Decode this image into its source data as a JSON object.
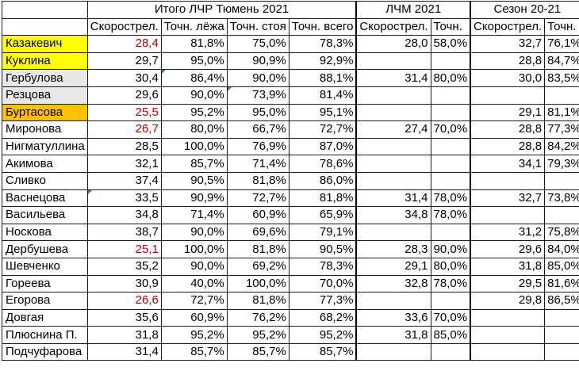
{
  "colors": {
    "highlight_yellow": "#ffff00",
    "highlight_orange": "#ffc000",
    "highlight_grey": "#e8e8e8",
    "slow_red": "#c00000",
    "comment_marker_green": "#3a8c3a"
  },
  "header": {
    "group1": "Итого ЛЧР Тюмень 2021",
    "group2": "ЛЧМ 2021",
    "group3": "Сезон 20-21",
    "cols": [
      "",
      "Скорострел.",
      "Точн. лёжа",
      "Точн. стоя",
      "Точн. всего",
      "Скорострел.",
      "Точн.",
      "Скорострел.",
      "Точн."
    ]
  },
  "rows": [
    {
      "name": "Казакевич",
      "highlight": "yellow",
      "red": true,
      "c": [
        "28,4",
        "81,8%",
        "75,0%",
        "78,3%",
        "28,0",
        "58,0%",
        "32,7",
        "76,1%"
      ]
    },
    {
      "name": "Куклина",
      "highlight": "yellow",
      "red": false,
      "c": [
        "29,7",
        "95,0%",
        "90,9%",
        "92,9%",
        "",
        "",
        "28,8",
        "84,7%"
      ]
    },
    {
      "name": "Гербулова",
      "highlight": "grey",
      "red": false,
      "c": [
        "30,4",
        "86,4%",
        "90,0%",
        "88,1%",
        "31,4",
        "80,0%",
        "30,0",
        "83,5%"
      ]
    },
    {
      "name": "Резцова",
      "highlight": "grey",
      "red": false,
      "c": [
        "29,6",
        "90,0%",
        "73,9%",
        "81,4%",
        "",
        "",
        "",
        ""
      ]
    },
    {
      "name": "Буртасова",
      "highlight": "orange",
      "red": true,
      "c": [
        "25,5",
        "95,2%",
        "95,0%",
        "95,1%",
        "",
        "",
        "29,1",
        "81,1%"
      ]
    },
    {
      "name": "Миронова",
      "highlight": "",
      "red": true,
      "c": [
        "26,7",
        "80,0%",
        "66,7%",
        "72,7%",
        "27,4",
        "70,0%",
        "28,8",
        "77,3%"
      ]
    },
    {
      "name": "Нигматуллина",
      "highlight": "",
      "red": false,
      "c": [
        "28,5",
        "100,0%",
        "76,9%",
        "87,0%",
        "",
        "",
        "28,8",
        "84,2%"
      ]
    },
    {
      "name": "Акимова",
      "highlight": "",
      "red": false,
      "c": [
        "32,1",
        "85,7%",
        "71,4%",
        "78,6%",
        "",
        "",
        "34,1",
        "79,3%"
      ]
    },
    {
      "name": "Сливко",
      "highlight": "",
      "red": false,
      "c": [
        "37,4",
        "90,5%",
        "81,8%",
        "86,0%",
        "",
        "",
        "",
        ""
      ]
    },
    {
      "name": "Васнецова",
      "highlight": "",
      "red": false,
      "c": [
        "33,5",
        "90,9%",
        "72,7%",
        "81,8%",
        "31,4",
        "78,0%",
        "32,7",
        "73,8%"
      ]
    },
    {
      "name": "Васильева",
      "highlight": "",
      "red": false,
      "c": [
        "34,8",
        "71,4%",
        "60,9%",
        "65,9%",
        "34,8",
        "78,0%",
        "",
        ""
      ]
    },
    {
      "name": "Носкова",
      "highlight": "",
      "red": false,
      "c": [
        "38,7",
        "90,0%",
        "69,6%",
        "79,1%",
        "",
        "",
        "31,2",
        "75,8%"
      ]
    },
    {
      "name": "Дербушева",
      "highlight": "",
      "red": true,
      "c": [
        "25,1",
        "100,0%",
        "81,8%",
        "90,5%",
        "28,3",
        "90,0%",
        "29,6",
        "84,0%"
      ]
    },
    {
      "name": "Шевченко",
      "highlight": "",
      "red": false,
      "c": [
        "35,2",
        "90,0%",
        "69,2%",
        "78,3%",
        "29,1",
        "80,0%",
        "31,8",
        "85,0%"
      ]
    },
    {
      "name": "Гореева",
      "highlight": "",
      "red": false,
      "c": [
        "30,9",
        "40,0%",
        "100,0%",
        "70,0%",
        "32,8",
        "78,0%",
        "29,5",
        "81,6%"
      ]
    },
    {
      "name": "Егорова",
      "highlight": "",
      "red": true,
      "c": [
        "26,6",
        "72,7%",
        "81,8%",
        "77,3%",
        "",
        "",
        "29,8",
        "86,5%"
      ]
    },
    {
      "name": "Довгая",
      "highlight": "",
      "red": false,
      "c": [
        "35,6",
        "60,9%",
        "76,2%",
        "68,2%",
        "33,6",
        "70,0%",
        "",
        ""
      ]
    },
    {
      "name": "Плюснина П.",
      "highlight": "",
      "red": false,
      "c": [
        "31,8",
        "95,2%",
        "95,2%",
        "95,2%",
        "31,8",
        "85,0%",
        "",
        ""
      ]
    },
    {
      "name": "Подчуфарова",
      "highlight": "",
      "red": false,
      "c": [
        "31,4",
        "85,7%",
        "85,7%",
        "85,7%",
        "",
        "",
        "",
        ""
      ]
    }
  ]
}
